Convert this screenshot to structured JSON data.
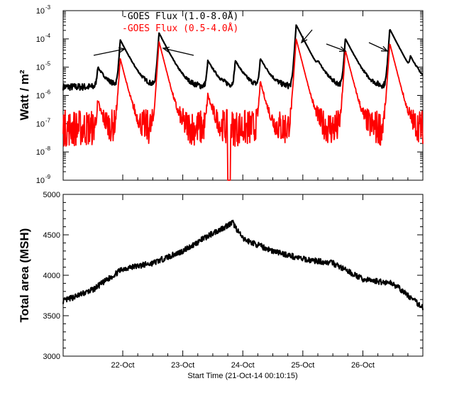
{
  "chart_data": [
    {
      "type": "line",
      "ylabel": "Watt / m²",
      "yscale": "log",
      "ylim": [
        1e-09,
        0.001
      ],
      "yticks": [
        {
          "value": 0.001,
          "base": "10",
          "exp": "-3"
        },
        {
          "value": 0.0001,
          "base": "10",
          "exp": "-4"
        },
        {
          "value": 1e-05,
          "base": "10",
          "exp": "-5"
        },
        {
          "value": 1e-06,
          "base": "10",
          "exp": "-6"
        },
        {
          "value": 1e-07,
          "base": "10",
          "exp": "-7"
        },
        {
          "value": 1e-08,
          "base": "10",
          "exp": "-8"
        },
        {
          "value": 1e-09,
          "base": "10",
          "exp": "-9"
        }
      ],
      "xlim": [
        "2014-10-21T00:10",
        "2014-10-26T23:59"
      ],
      "series": [
        {
          "name": "-GOES Flux (1.0-8.0Å)",
          "color": "#000000",
          "background": 2e-06,
          "flares": [
            {
              "x": "2014-10-21T14:00",
              "peak": 8e-06
            },
            {
              "x": "2014-10-21T23:00",
              "peak": 9e-05
            },
            {
              "x": "2014-10-22T14:30",
              "peak": 0.00016
            },
            {
              "x": "2014-10-23T10:00",
              "peak": 1.5e-05
            },
            {
              "x": "2014-10-23T21:00",
              "peak": 1.5e-05
            },
            {
              "x": "2014-10-24T07:00",
              "peak": 1.8e-05
            },
            {
              "x": "2014-10-24T21:20",
              "peak": 0.00031
            },
            {
              "x": "2014-10-25T06:00",
              "peak": 6e-06
            },
            {
              "x": "2014-10-25T17:00",
              "peak": 0.0001
            },
            {
              "x": "2014-10-26T10:45",
              "peak": 0.00022
            },
            {
              "x": "2014-10-26T19:00",
              "peak": 1.5e-05
            }
          ]
        },
        {
          "name": "-GOES Flux (0.5-4.0Å)",
          "color": "#ff0000",
          "background": 7e-08,
          "flares": [
            {
              "x": "2014-10-21T14:00",
              "peak": 5e-07
            },
            {
              "x": "2014-10-21T23:00",
              "peak": 2e-05
            },
            {
              "x": "2014-10-22T14:30",
              "peak": 8e-05
            },
            {
              "x": "2014-10-23T10:00",
              "peak": 1e-06
            },
            {
              "x": "2014-10-23T18:30",
              "peak": 1e-09
            },
            {
              "x": "2014-10-24T07:00",
              "peak": 3e-06
            },
            {
              "x": "2014-10-24T21:20",
              "peak": 0.0001
            },
            {
              "x": "2014-10-25T17:00",
              "peak": 4e-05
            },
            {
              "x": "2014-10-26T10:45",
              "peak": 7e-05
            }
          ]
        }
      ]
    },
    {
      "type": "line",
      "ylabel": "Total area (MSH)",
      "ylim": [
        3000,
        5000
      ],
      "yticks": [
        "3000",
        "3500",
        "4000",
        "4500",
        "5000"
      ],
      "xlim": [
        "2014-10-21T00:10",
        "2014-10-26T23:59"
      ],
      "xticks": [
        "22-Oct",
        "23-Oct",
        "24-Oct",
        "25-Oct",
        "26-Oct"
      ],
      "xlabel": "Start Time (21-Oct-14 00:10:15)",
      "series": [
        {
          "color": "#000000",
          "x": [
            "2014-10-21T00:10",
            "2014-10-21T12:00",
            "2014-10-22T00:00",
            "2014-10-22T12:00",
            "2014-10-23T00:00",
            "2014-10-23T12:00",
            "2014-10-23T20:00",
            "2014-10-24T00:00",
            "2014-10-24T12:00",
            "2014-10-25T00:00",
            "2014-10-25T12:00",
            "2014-10-26T00:00",
            "2014-10-26T12:00",
            "2014-10-26T23:59"
          ],
          "values": [
            3680,
            3820,
            4080,
            4150,
            4300,
            4520,
            4650,
            4450,
            4300,
            4200,
            4150,
            3950,
            3900,
            3600
          ]
        }
      ]
    }
  ]
}
